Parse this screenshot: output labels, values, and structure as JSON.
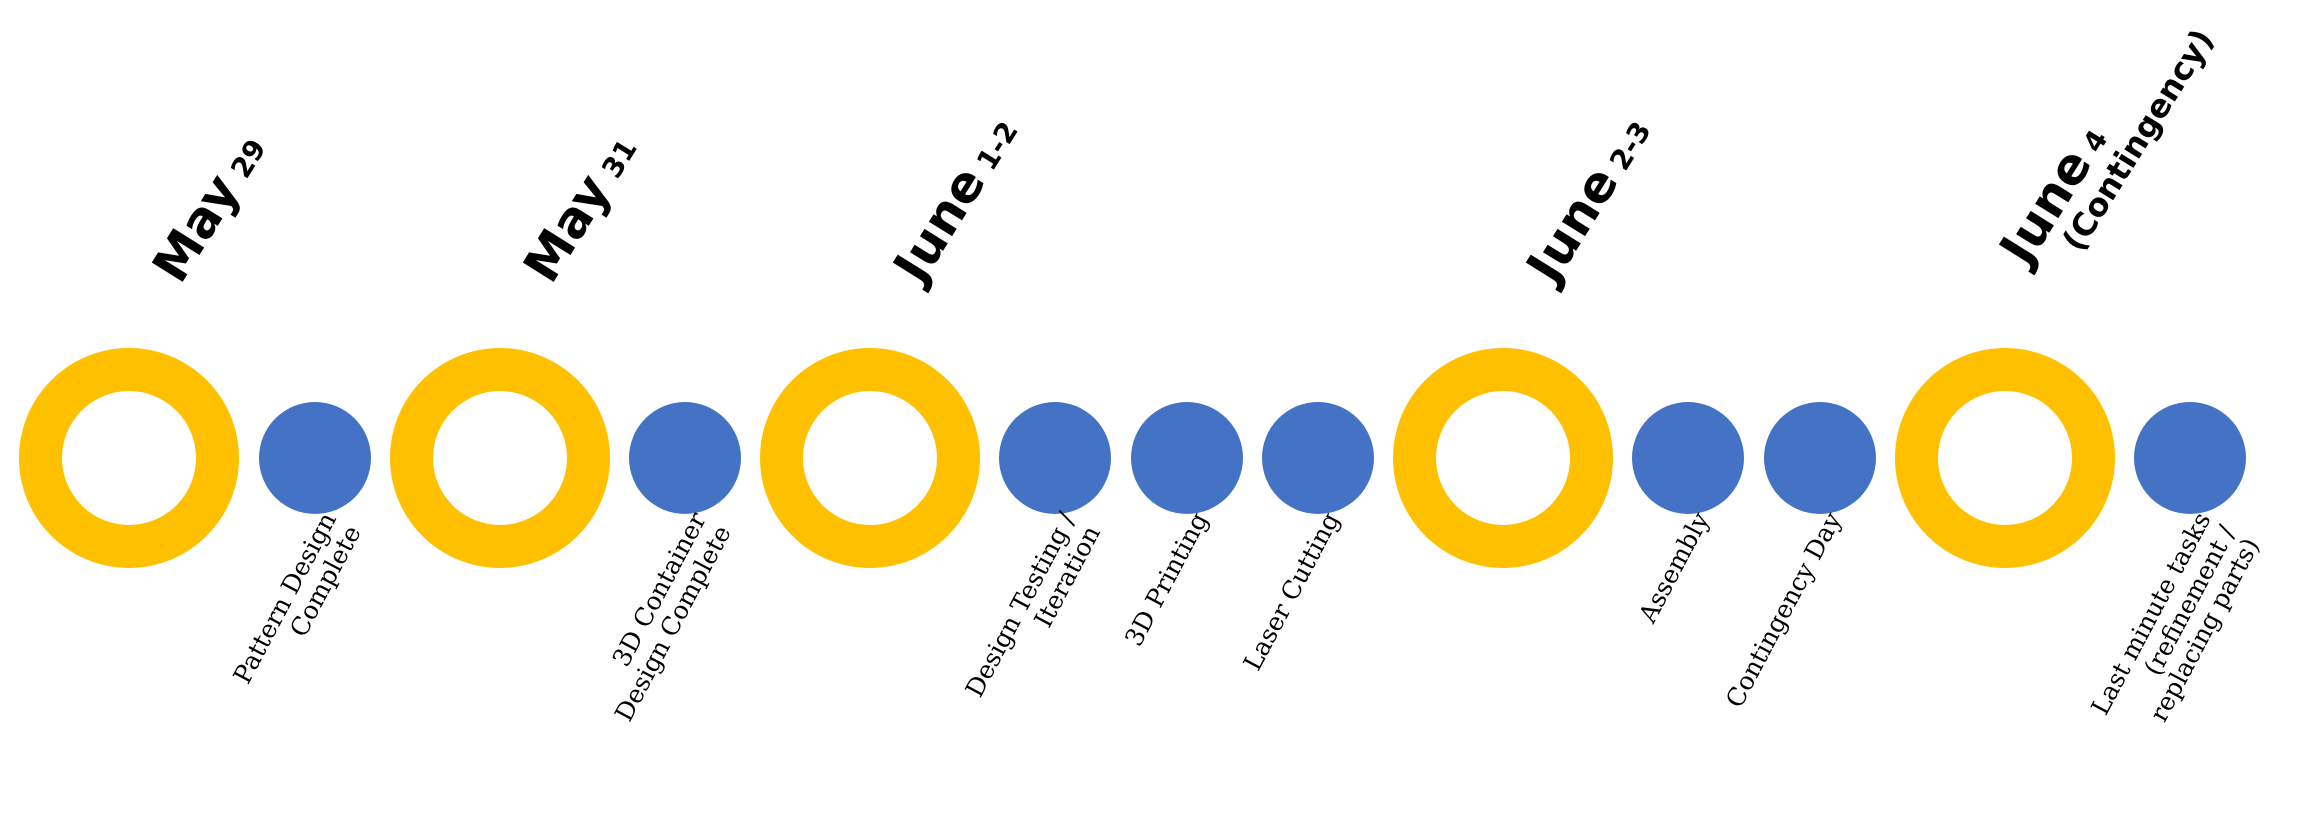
{
  "colors": {
    "milestone": "#FFC000",
    "task": "#4472C4"
  },
  "milestones": [
    {
      "month": "May",
      "day": "29",
      "note": ""
    },
    {
      "month": "May",
      "day": "31",
      "note": ""
    },
    {
      "month": "June",
      "day": "1-2",
      "note": ""
    },
    {
      "month": "June",
      "day": "2-3",
      "note": ""
    },
    {
      "month": "June",
      "day": "4",
      "note": "(Contingency)"
    }
  ],
  "tasks": [
    {
      "label": "Pattern Design\nComplete"
    },
    {
      "label": "3D Container\nDesign Complete"
    },
    {
      "label": "Design Testing /\nIteration"
    },
    {
      "label": "3D Printing"
    },
    {
      "label": "Laser Cutting"
    },
    {
      "label": "Assembly"
    },
    {
      "label": "Contingency Day"
    },
    {
      "label": "Last minute tasks\n(refinement /\nreplacing parts)"
    }
  ]
}
